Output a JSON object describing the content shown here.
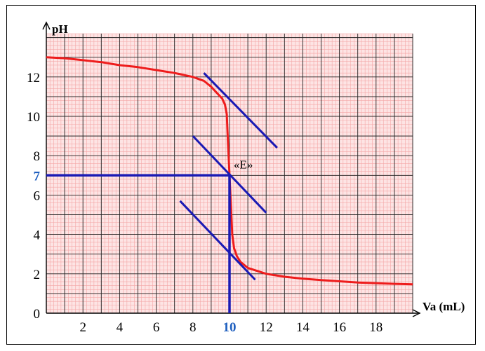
{
  "chart_data": {
    "type": "line",
    "title": "",
    "xlabel": "Va (mL)",
    "ylabel": "pH",
    "xlim": [
      0,
      20
    ],
    "ylim": [
      0,
      13.5
    ],
    "x_ticks": [
      2,
      4,
      6,
      8,
      10,
      12,
      14,
      16,
      18
    ],
    "y_ticks": [
      0,
      2,
      4,
      6,
      8,
      10,
      12
    ],
    "x_tick_labels": [
      "2",
      "4",
      "6",
      "8",
      "10",
      "12",
      "14",
      "16",
      "18"
    ],
    "y_tick_labels": [
      "0",
      "2",
      "4",
      "6",
      "8",
      "10",
      "12"
    ],
    "highlight_x_label": "10",
    "highlight_y_label": "7",
    "grid": true,
    "colors": {
      "curve": "#ee1c1c",
      "construction": "#1a1ab4",
      "grid_minor": "#f4a6a6",
      "grid_major": "#000000",
      "background": "#fde4e4",
      "highlight_label": "#1f5fbf"
    },
    "series": [
      {
        "x": [
          0,
          1,
          2,
          3,
          4,
          5,
          6,
          7,
          8,
          8.6,
          9.0,
          9.3,
          9.6,
          9.75,
          9.85,
          9.9,
          9.95,
          10.0,
          10.05,
          10.1,
          10.15,
          10.25,
          10.4,
          10.6,
          11,
          12,
          13,
          14,
          15,
          16,
          17,
          18,
          19,
          20
        ],
        "y": [
          13.0,
          12.95,
          12.85,
          12.75,
          12.6,
          12.5,
          12.35,
          12.2,
          12.0,
          11.8,
          11.5,
          11.2,
          10.9,
          10.6,
          10.1,
          9.0,
          8.0,
          7.0,
          6.0,
          5.0,
          4.0,
          3.3,
          2.9,
          2.6,
          2.3,
          2.0,
          1.85,
          1.75,
          1.68,
          1.62,
          1.56,
          1.52,
          1.49,
          1.47
        ]
      }
    ],
    "tangents": [
      {
        "x": [
          8.6,
          12.6
        ],
        "y": [
          12.2,
          8.4
        ]
      },
      {
        "x": [
          8.0,
          12.0
        ],
        "y": [
          9.0,
          5.1
        ]
      },
      {
        "x": [
          7.3,
          11.4
        ],
        "y": [
          5.7,
          1.7
        ]
      }
    ],
    "equivalence_point": {
      "label": "«E»",
      "x": 10,
      "y": 7
    }
  }
}
